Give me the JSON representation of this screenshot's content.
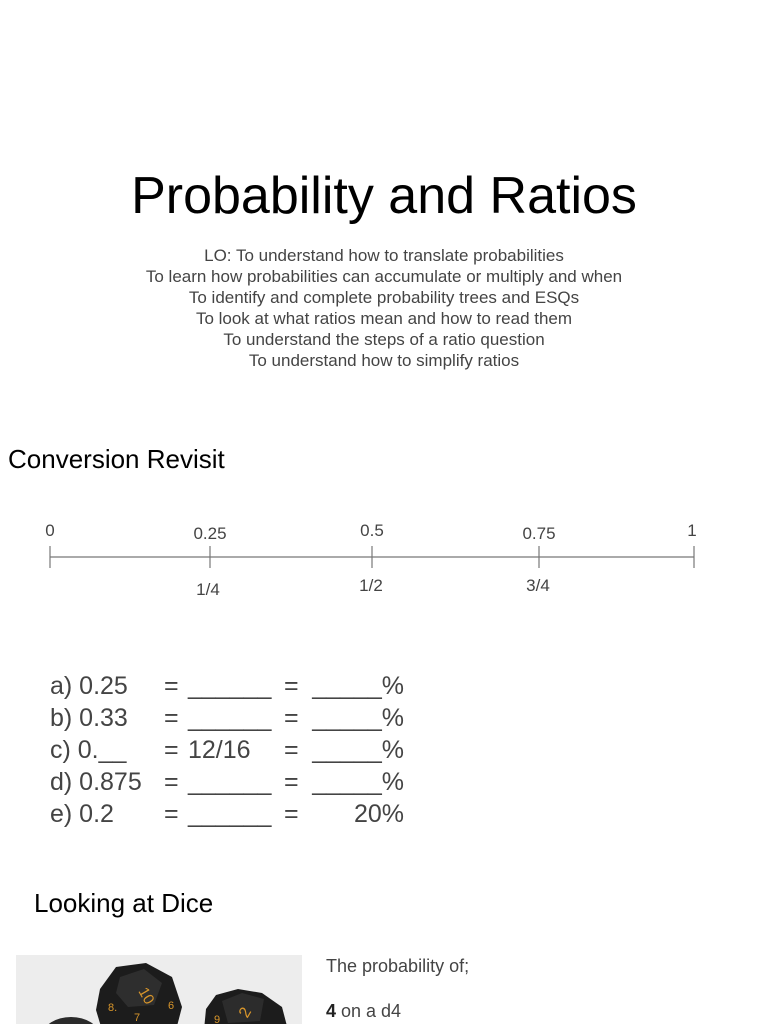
{
  "title": "Probability and Ratios",
  "objectives": [
    "LO: To understand how to translate probabilities",
    "To learn how probabilities can accumulate or multiply and when",
    "To identify and complete probability trees and ESQs",
    "To look at what ratios mean and how to read them",
    "To understand the steps of a ratio question",
    "To understand how to simplify ratios"
  ],
  "conversion": {
    "heading": "Conversion Revisit",
    "number_line": {
      "decimals": [
        "0",
        "0.25",
        "0.5",
        "0.75",
        "1"
      ],
      "fractions": [
        "1/4",
        "1/2",
        "3/4"
      ]
    },
    "rows": [
      {
        "label": "a) 0.25",
        "eq1": "=",
        "fraction": "______",
        "eq2": "=",
        "percent": "_____%"
      },
      {
        "label": "b) 0.33",
        "eq1": "=",
        "fraction": "______",
        "eq2": "=",
        "percent": "_____%"
      },
      {
        "label": "c) 0.__",
        "eq1": "=",
        "fraction": "12/16",
        "eq2": "=",
        "percent": "_____%"
      },
      {
        "label": "d) 0.875",
        "eq1": "=",
        "fraction": "______",
        "eq2": "=",
        "percent": "_____%"
      },
      {
        "label": "e) 0.2",
        "eq1": "=",
        "fraction": "______",
        "eq2": "=",
        "percent": "20%"
      }
    ]
  },
  "dice": {
    "heading": "Looking at Dice",
    "image_icon": "dice-photo",
    "probability_intro": "The probability of;",
    "item_bold": "4",
    "item_rest": " on a d4",
    "die_labels": [
      "10",
      "2"
    ]
  }
}
